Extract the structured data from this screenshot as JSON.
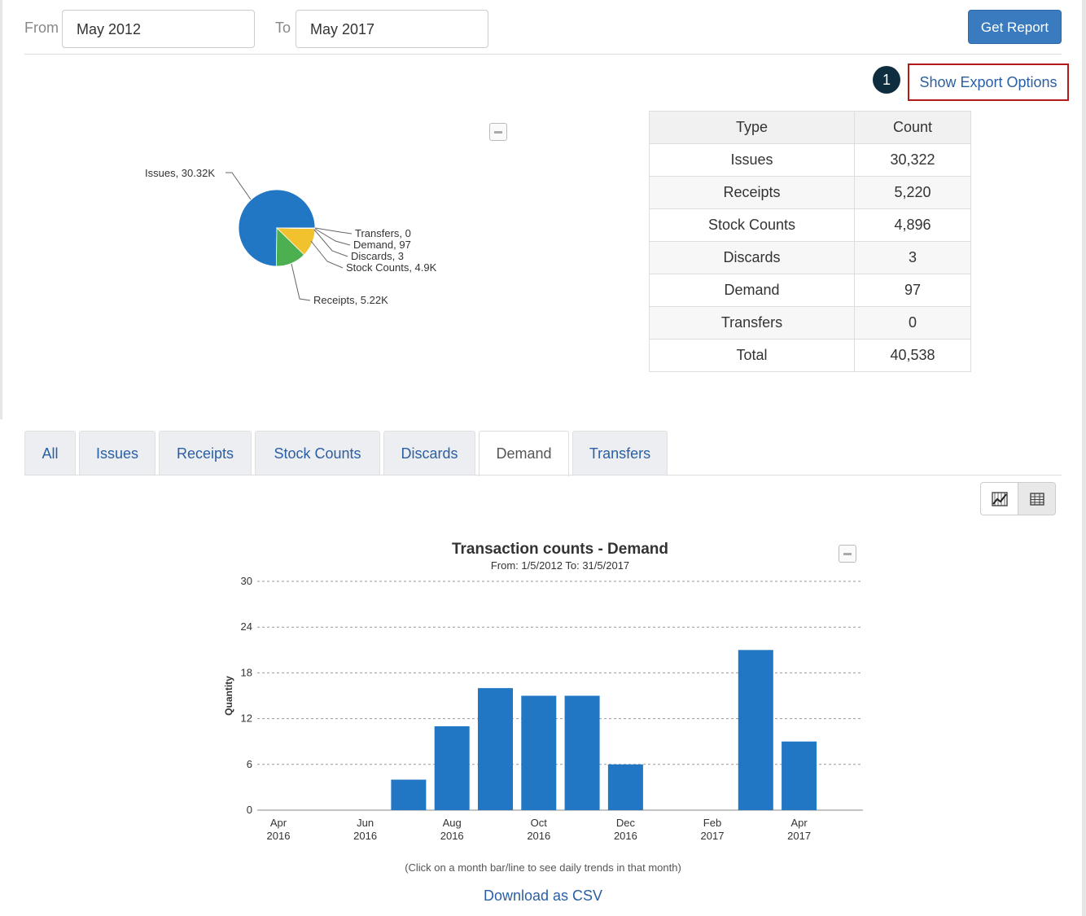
{
  "filters": {
    "from_label": "From",
    "from_value": "May 2012",
    "to_label": "To",
    "to_value": "May 2017",
    "get_report_label": "Get Report"
  },
  "callout": {
    "step_number": "1",
    "export_label": "Show Export Options"
  },
  "pie": {
    "colors": {
      "Issues": "#2277c4",
      "Receipts": "#4caf50",
      "Stock Counts": "#f2c12e",
      "Discards": "#e05a2b",
      "Demand": "#8e44ad",
      "Transfers": "#555555"
    },
    "labels": [
      "Issues, 30.32K",
      "Transfers, 0",
      "Demand, 97",
      "Discards, 3",
      "Stock Counts, 4.9K",
      "Receipts, 5.22K"
    ]
  },
  "summary_table": {
    "headers": [
      "Type",
      "Count"
    ],
    "rows": [
      [
        "Issues",
        "30,322"
      ],
      [
        "Receipts",
        "5,220"
      ],
      [
        "Stock Counts",
        "4,896"
      ],
      [
        "Discards",
        "3"
      ],
      [
        "Demand",
        "97"
      ],
      [
        "Transfers",
        "0"
      ],
      [
        "Total",
        "40,538"
      ]
    ]
  },
  "tabs": [
    {
      "label": "All",
      "active": false
    },
    {
      "label": "Issues",
      "active": false
    },
    {
      "label": "Receipts",
      "active": false
    },
    {
      "label": "Stock Counts",
      "active": false
    },
    {
      "label": "Discards",
      "active": false
    },
    {
      "label": "Demand",
      "active": true
    },
    {
      "label": "Transfers",
      "active": false
    }
  ],
  "view_toggle": {
    "options": [
      "chart-icon",
      "table-icon"
    ],
    "active": "chart-icon"
  },
  "chart_data": [
    {
      "type": "pie",
      "title": "",
      "categories": [
        "Issues",
        "Receipts",
        "Stock Counts",
        "Discards",
        "Demand",
        "Transfers"
      ],
      "values": [
        30322,
        5220,
        4896,
        3,
        97,
        0
      ]
    },
    {
      "type": "bar",
      "title": "Transaction counts - Demand",
      "subtitle": "From: 1/5/2012 To: 31/5/2017",
      "xlabel": "",
      "ylabel": "Quantity",
      "ylim": [
        0,
        30
      ],
      "yticks": [
        "0",
        "6",
        "12",
        "18",
        "24",
        "30"
      ],
      "categories": [
        "Apr 2016",
        "May 2016",
        "Jun 2016",
        "Jul 2016",
        "Aug 2016",
        "Sep 2016",
        "Oct 2016",
        "Nov 2016",
        "Dec 2016",
        "Jan 2017",
        "Feb 2017",
        "Mar 2017",
        "Apr 2017"
      ],
      "x_tick_labels": [
        [
          "Apr",
          "2016"
        ],
        [
          "Jun",
          "2016"
        ],
        [
          "Aug",
          "2016"
        ],
        [
          "Oct",
          "2016"
        ],
        [
          "Dec",
          "2016"
        ],
        [
          "Feb",
          "2017"
        ],
        [
          "Apr",
          "2017"
        ]
      ],
      "values": [
        0,
        0,
        0,
        4,
        11,
        16,
        15,
        15,
        6,
        0,
        0,
        21,
        9
      ],
      "color": "#2277c4",
      "grid": "horizontal dashed"
    }
  ],
  "footer": {
    "hint": "(Click on a month bar/line to see daily trends in that month)",
    "download_label": "Download as CSV"
  }
}
